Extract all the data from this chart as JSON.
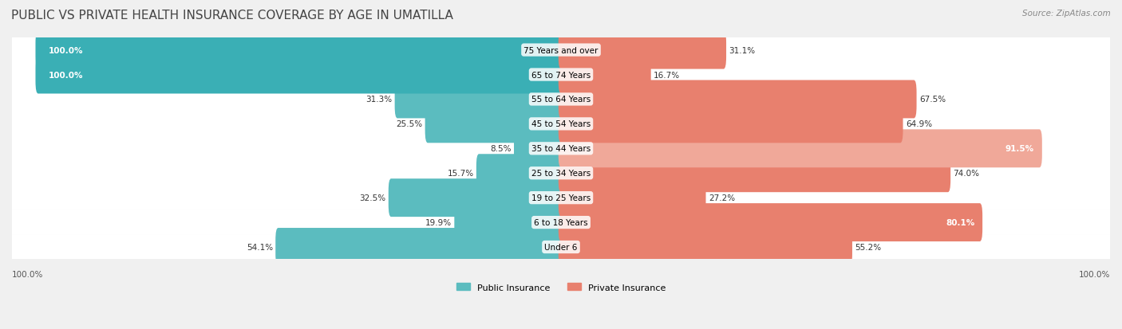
{
  "title": "PUBLIC VS PRIVATE HEALTH INSURANCE COVERAGE BY AGE IN UMATILLA",
  "source": "Source: ZipAtlas.com",
  "categories": [
    "Under 6",
    "6 to 18 Years",
    "19 to 25 Years",
    "25 to 34 Years",
    "35 to 44 Years",
    "45 to 54 Years",
    "55 to 64 Years",
    "65 to 74 Years",
    "75 Years and over"
  ],
  "public_values": [
    54.1,
    19.9,
    32.5,
    15.7,
    8.5,
    25.5,
    31.3,
    100.0,
    100.0
  ],
  "private_values": [
    55.2,
    80.1,
    27.2,
    74.0,
    91.5,
    64.9,
    67.5,
    16.7,
    31.1
  ],
  "public_color": "#5bbcbf",
  "private_color": "#e8806e",
  "public_color_full": "#3aafb5",
  "private_color_full": "#f0a899",
  "bg_color": "#f0f0f0",
  "row_bg": "#f7f7f7",
  "row_bg_alt": "#eeeeee",
  "bar_height": 0.55,
  "max_value": 100.0,
  "title_fontsize": 11,
  "label_fontsize": 7.5,
  "category_fontsize": 7.5,
  "legend_fontsize": 8
}
